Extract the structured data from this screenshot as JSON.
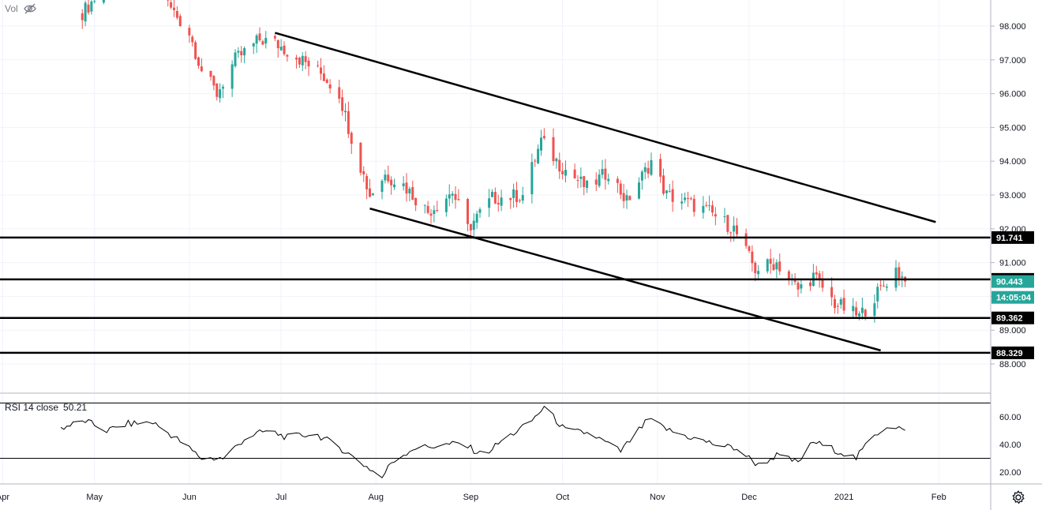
{
  "header": {
    "vol_label": "Vol",
    "eye_icon": "eye-off-icon"
  },
  "rsi": {
    "label": "RSI 14 close",
    "value": "50.21"
  },
  "colors": {
    "up": "#26a69a",
    "down": "#ef5350",
    "line": "#000000",
    "last_price_bg": "#26a69a",
    "grid": "#f0f3fa"
  },
  "chart_data": [
    {
      "type": "candlestick",
      "series_name": "",
      "price_axis": {
        "ticks": [
          98,
          97,
          96,
          95,
          94,
          93,
          92,
          91,
          90,
          89,
          88
        ],
        "range": [
          87.3,
          98.8
        ]
      },
      "time_axis": {
        "labels": [
          "Apr",
          "May",
          "Jun",
          "Jul",
          "Aug",
          "Sep",
          "Oct",
          "Nov",
          "Dec",
          "2021",
          "Feb"
        ]
      },
      "close_path": [
        [
          "2020-04-27",
          98.4
        ],
        [
          "2020-05-07",
          99.4
        ],
        [
          "2020-05-22",
          99.0
        ],
        [
          "2020-06-01",
          97.8
        ],
        [
          "2020-06-05",
          96.7
        ],
        [
          "2020-06-10",
          96.0
        ],
        [
          "2020-06-16",
          97.0
        ],
        [
          "2020-06-24",
          97.6
        ],
        [
          "2020-06-29",
          97.5
        ],
        [
          "2020-07-06",
          97.1
        ],
        [
          "2020-07-14",
          96.6
        ],
        [
          "2020-07-20",
          96.0
        ],
        [
          "2020-07-24",
          94.7
        ],
        [
          "2020-07-30",
          93.0
        ],
        [
          "2020-08-04",
          93.6
        ],
        [
          "2020-08-10",
          93.3
        ],
        [
          "2020-08-18",
          92.5
        ],
        [
          "2020-08-26",
          93.1
        ],
        [
          "2020-08-31",
          92.0
        ],
        [
          "2020-09-08",
          92.9
        ],
        [
          "2020-09-18",
          93.0
        ],
        [
          "2020-09-24",
          94.6
        ],
        [
          "2020-09-30",
          93.9
        ],
        [
          "2020-10-09",
          93.2
        ],
        [
          "2020-10-16",
          93.7
        ],
        [
          "2020-10-22",
          92.8
        ],
        [
          "2020-10-30",
          94.0
        ],
        [
          "2020-11-04",
          93.0
        ],
        [
          "2020-11-10",
          92.8
        ],
        [
          "2020-11-18",
          92.5
        ],
        [
          "2020-11-26",
          92.0
        ],
        [
          "2020-12-03",
          90.8
        ],
        [
          "2020-12-10",
          91.0
        ],
        [
          "2020-12-17",
          90.2
        ],
        [
          "2020-12-22",
          90.6
        ],
        [
          "2020-12-29",
          89.8
        ],
        [
          "2021-01-06",
          89.4
        ],
        [
          "2021-01-12",
          90.1
        ],
        [
          "2021-01-18",
          90.8
        ],
        [
          "2021-01-21",
          90.44
        ]
      ],
      "horizontal_levels": [
        91.741,
        90.503,
        89.362,
        88.329
      ],
      "trendlines": [
        {
          "from": [
            "2020-06-29",
            97.8
          ],
          "to": [
            "2021-01-31",
            92.2
          ]
        },
        {
          "from": [
            "2020-07-30",
            92.6
          ],
          "to": [
            "2021-01-13",
            88.4
          ]
        }
      ],
      "price_labels": [
        {
          "value": "91.741",
          "style": "level"
        },
        {
          "value": "90.503",
          "style": "level"
        },
        {
          "value": "90.443",
          "style": "last"
        },
        {
          "value": "14:05:04",
          "style": "countdown"
        },
        {
          "value": "89.362",
          "style": "level"
        },
        {
          "value": "88.329",
          "style": "level"
        }
      ]
    },
    {
      "type": "line",
      "series_name": "RSI 14 close",
      "value_axis": {
        "ticks": [
          60,
          40,
          20
        ],
        "range": [
          12,
          73
        ]
      },
      "bands": [
        70,
        30
      ],
      "points": [
        [
          "2020-04-20",
          52
        ],
        [
          "2020-04-28",
          57
        ],
        [
          "2020-05-05",
          50
        ],
        [
          "2020-05-12",
          55
        ],
        [
          "2020-05-20",
          56
        ],
        [
          "2020-05-28",
          44
        ],
        [
          "2020-06-05",
          30
        ],
        [
          "2020-06-12",
          30
        ],
        [
          "2020-06-20",
          46
        ],
        [
          "2020-06-27",
          50
        ],
        [
          "2020-07-03",
          45
        ],
        [
          "2020-07-12",
          48
        ],
        [
          "2020-07-20",
          38
        ],
        [
          "2020-07-27",
          27
        ],
        [
          "2020-08-03",
          16
        ],
        [
          "2020-08-06",
          27
        ],
        [
          "2020-08-13",
          37
        ],
        [
          "2020-08-21",
          39
        ],
        [
          "2020-08-29",
          41
        ],
        [
          "2020-09-05",
          32
        ],
        [
          "2020-09-12",
          44
        ],
        [
          "2020-09-20",
          55
        ],
        [
          "2020-09-25",
          67
        ],
        [
          "2020-10-02",
          50
        ],
        [
          "2020-10-10",
          48
        ],
        [
          "2020-10-20",
          35
        ],
        [
          "2020-10-29",
          58
        ],
        [
          "2020-11-05",
          50
        ],
        [
          "2020-11-12",
          45
        ],
        [
          "2020-11-20",
          40
        ],
        [
          "2020-11-27",
          37
        ],
        [
          "2020-12-04",
          25
        ],
        [
          "2020-12-10",
          32
        ],
        [
          "2020-12-17",
          27
        ],
        [
          "2020-12-22",
          42
        ],
        [
          "2020-12-28",
          37
        ],
        [
          "2021-01-05",
          30
        ],
        [
          "2021-01-10",
          45
        ],
        [
          "2021-01-16",
          55
        ],
        [
          "2021-01-21",
          50.21
        ]
      ]
    }
  ]
}
